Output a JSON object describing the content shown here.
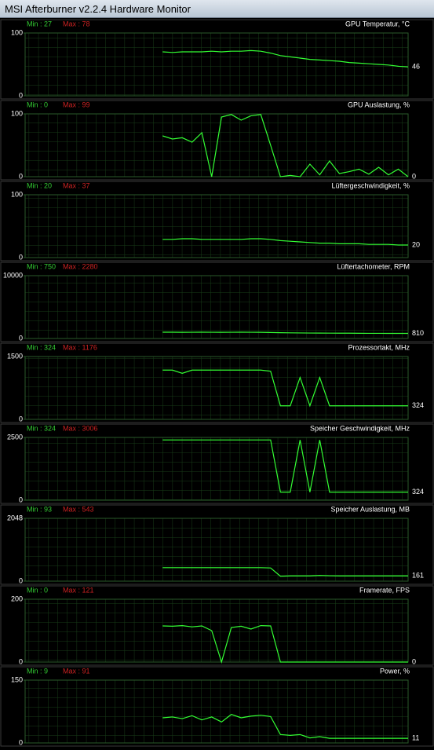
{
  "window": {
    "title": "MSI Afterburner v2.2.4 Hardware Monitor"
  },
  "chart_data": [
    {
      "type": "line",
      "title": "GPU Temperatur, °C",
      "min": "Min : 27",
      "max": "Max : 78",
      "ylim": [
        0,
        100
      ],
      "yticks": [
        0,
        100
      ],
      "current": 46,
      "color": "#33ff33",
      "values": [
        null,
        null,
        null,
        null,
        null,
        null,
        null,
        null,
        null,
        null,
        null,
        null,
        null,
        null,
        70,
        69,
        70,
        70,
        70,
        71,
        70,
        71,
        71,
        72,
        71,
        68,
        64,
        62,
        60,
        58,
        57,
        56,
        55,
        53,
        52,
        51,
        50,
        49,
        47,
        46
      ]
    },
    {
      "type": "line",
      "title": "GPU Auslastung, %",
      "min": "Min : 0",
      "max": "Max : 99",
      "ylim": [
        0,
        100
      ],
      "yticks": [
        0,
        100
      ],
      "current": 0,
      "color": "#33ff33",
      "values": [
        null,
        null,
        null,
        null,
        null,
        null,
        null,
        null,
        null,
        null,
        null,
        null,
        null,
        null,
        65,
        60,
        62,
        55,
        70,
        0,
        95,
        99,
        90,
        97,
        99,
        50,
        0,
        2,
        0,
        20,
        3,
        25,
        5,
        8,
        12,
        4,
        15,
        3,
        12,
        0
      ]
    },
    {
      "type": "line",
      "title": "Lüftergeschwindigkeit, %",
      "min": "Min : 20",
      "max": "Max : 37",
      "ylim": [
        0,
        100
      ],
      "yticks": [
        0,
        100
      ],
      "current": 20,
      "color": "#33ff33",
      "values": [
        null,
        null,
        null,
        null,
        null,
        null,
        null,
        null,
        null,
        null,
        null,
        null,
        null,
        null,
        29,
        29,
        30,
        30,
        29,
        29,
        29,
        29,
        29,
        30,
        30,
        29,
        27,
        26,
        25,
        24,
        23,
        23,
        22,
        22,
        22,
        21,
        21,
        21,
        20,
        20
      ]
    },
    {
      "type": "line",
      "title": "Lüftertachometer, RPM",
      "min": "Min : 750",
      "max": "Max : 2280",
      "ylim": [
        0,
        10000
      ],
      "yticks": [
        0,
        10000
      ],
      "current": 810,
      "color": "#33ff33",
      "values": [
        null,
        null,
        null,
        null,
        null,
        null,
        null,
        null,
        null,
        null,
        null,
        null,
        null,
        null,
        1000,
        1000,
        980,
        990,
        1000,
        990,
        980,
        990,
        1000,
        990,
        980,
        950,
        920,
        900,
        880,
        870,
        860,
        850,
        840,
        840,
        830,
        820,
        820,
        810,
        810,
        810
      ]
    },
    {
      "type": "line",
      "title": "Prozessortakt, MHz",
      "min": "Min : 324",
      "max": "Max : 1176",
      "ylim": [
        0,
        1500
      ],
      "yticks": [
        0,
        1500
      ],
      "current": 324,
      "color": "#33ff33",
      "values": [
        null,
        null,
        null,
        null,
        null,
        null,
        null,
        null,
        null,
        null,
        null,
        null,
        null,
        null,
        1176,
        1176,
        1100,
        1176,
        1176,
        1176,
        1176,
        1176,
        1176,
        1176,
        1176,
        1150,
        324,
        324,
        1000,
        324,
        1000,
        324,
        324,
        324,
        324,
        324,
        324,
        324,
        324,
        324
      ]
    },
    {
      "type": "line",
      "title": "Speicher Geschwindigkeit, MHz",
      "min": "Min : 324",
      "max": "Max : 3006",
      "ylim": [
        0,
        2500
      ],
      "yticks": [
        0,
        2500
      ],
      "current": 324,
      "color": "#33ff33",
      "values": [
        null,
        null,
        null,
        null,
        null,
        null,
        null,
        null,
        null,
        null,
        null,
        null,
        null,
        null,
        2400,
        2400,
        2400,
        2400,
        2400,
        2400,
        2400,
        2400,
        2400,
        2400,
        2400,
        2400,
        324,
        324,
        2400,
        324,
        2400,
        324,
        324,
        324,
        324,
        324,
        324,
        324,
        324,
        324
      ]
    },
    {
      "type": "line",
      "title": "Speicher Auslastung, MB",
      "min": "Min : 93",
      "max": "Max : 543",
      "ylim": [
        0,
        2048
      ],
      "yticks": [
        0,
        2048
      ],
      "current": 161,
      "color": "#33ff33",
      "values": [
        null,
        null,
        null,
        null,
        null,
        null,
        null,
        null,
        null,
        null,
        null,
        null,
        null,
        null,
        440,
        440,
        440,
        440,
        440,
        440,
        440,
        440,
        440,
        440,
        440,
        430,
        161,
        170,
        170,
        170,
        185,
        175,
        170,
        170,
        170,
        170,
        170,
        170,
        170,
        170
      ]
    },
    {
      "type": "line",
      "title": "Framerate, FPS",
      "min": "Min : 0",
      "max": "Max : 121",
      "ylim": [
        0,
        200
      ],
      "yticks": [
        0,
        200
      ],
      "current": 0,
      "color": "#33ff33",
      "values": [
        null,
        null,
        null,
        null,
        null,
        null,
        null,
        null,
        null,
        null,
        null,
        null,
        null,
        null,
        115,
        114,
        116,
        112,
        115,
        100,
        0,
        110,
        114,
        105,
        116,
        115,
        0,
        0,
        0,
        0,
        0,
        0,
        0,
        0,
        0,
        0,
        0,
        0,
        0,
        0
      ]
    },
    {
      "type": "line",
      "title": "Power, %",
      "min": "Min : 9",
      "max": "Max : 91",
      "ylim": [
        0,
        150
      ],
      "yticks": [
        0,
        150
      ],
      "current": 11,
      "color": "#33ff33",
      "values": [
        null,
        null,
        null,
        null,
        null,
        null,
        null,
        null,
        null,
        null,
        null,
        null,
        null,
        null,
        60,
        62,
        58,
        65,
        55,
        62,
        50,
        68,
        60,
        64,
        66,
        63,
        20,
        18,
        20,
        12,
        15,
        11,
        11,
        11,
        11,
        11,
        11,
        11,
        11,
        11
      ]
    }
  ]
}
